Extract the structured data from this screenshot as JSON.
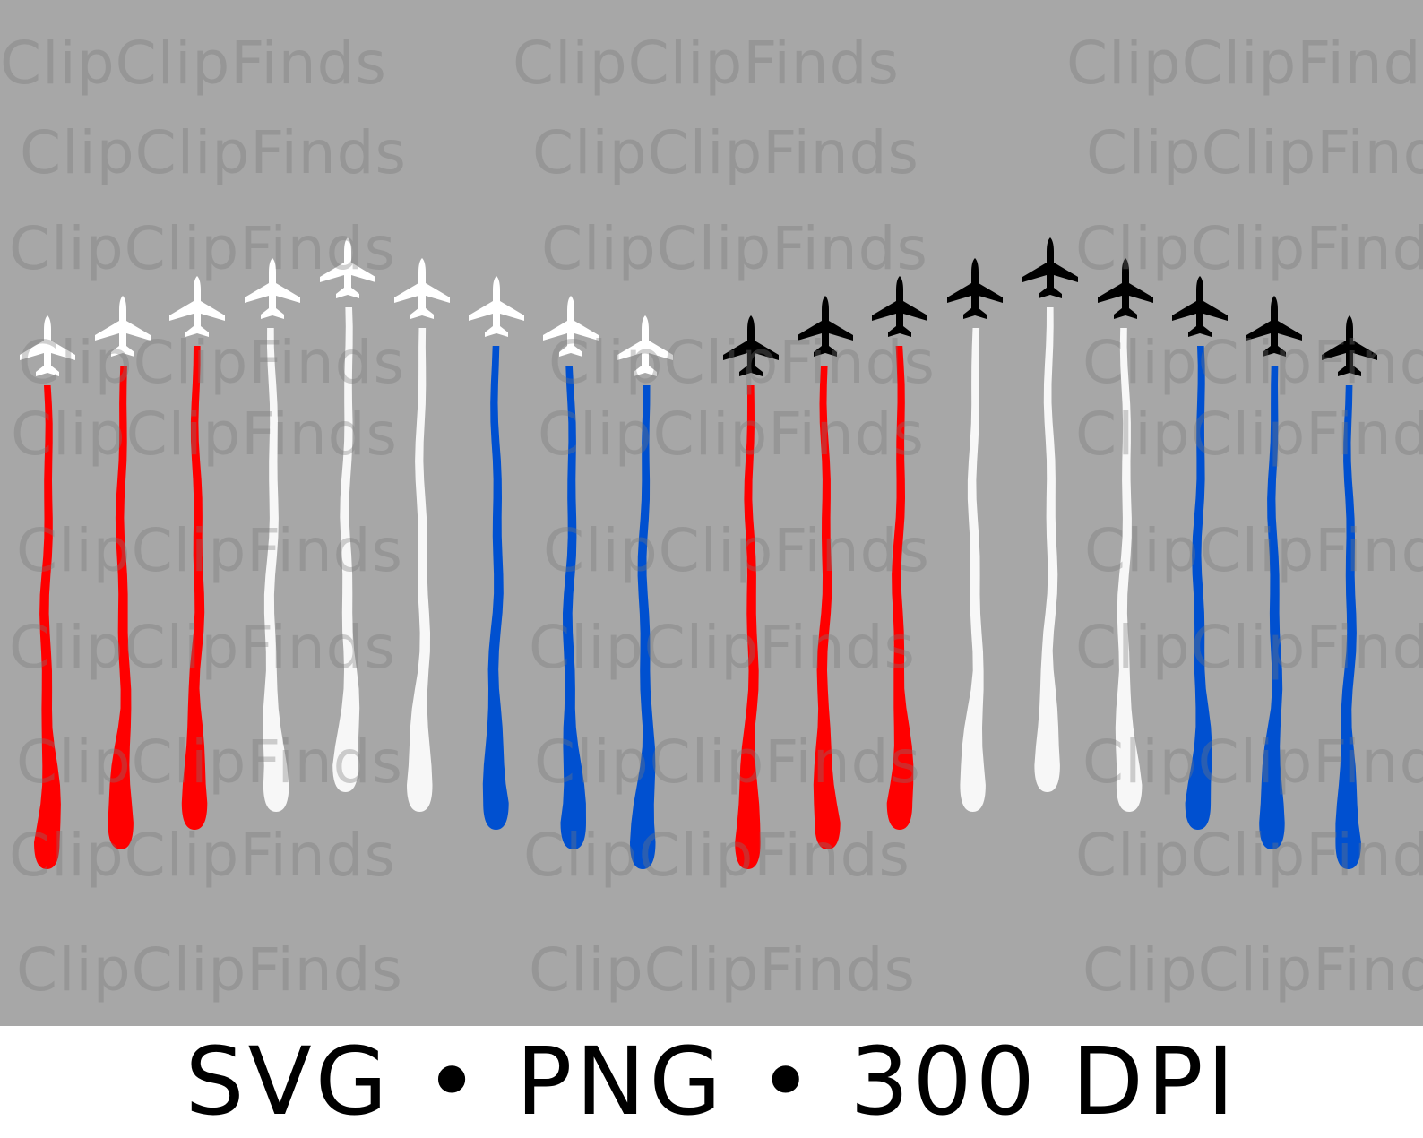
{
  "colors": {
    "background": "#a7a7a7",
    "footer_background": "#ffffff",
    "red": "#ff0000",
    "white": "#f7f7f7",
    "blue": "#0050d0",
    "plane_white": "#ffffff",
    "plane_black": "#000000",
    "watermark": "#8a8a8a"
  },
  "watermark_text": "ClipClipFinds",
  "footer": {
    "text": "SVG • PNG • 300 DPI"
  },
  "artwork": {
    "description_icons": [
      "airplane-icon"
    ],
    "groups": [
      {
        "plane_color": "plane_white",
        "trails": [
          "red",
          "red",
          "red",
          "white",
          "white",
          "white",
          "blue",
          "blue",
          "blue"
        ]
      },
      {
        "plane_color": "plane_black",
        "trails": [
          "red",
          "red",
          "red",
          "white",
          "white",
          "white",
          "blue",
          "blue",
          "blue"
        ]
      }
    ]
  }
}
